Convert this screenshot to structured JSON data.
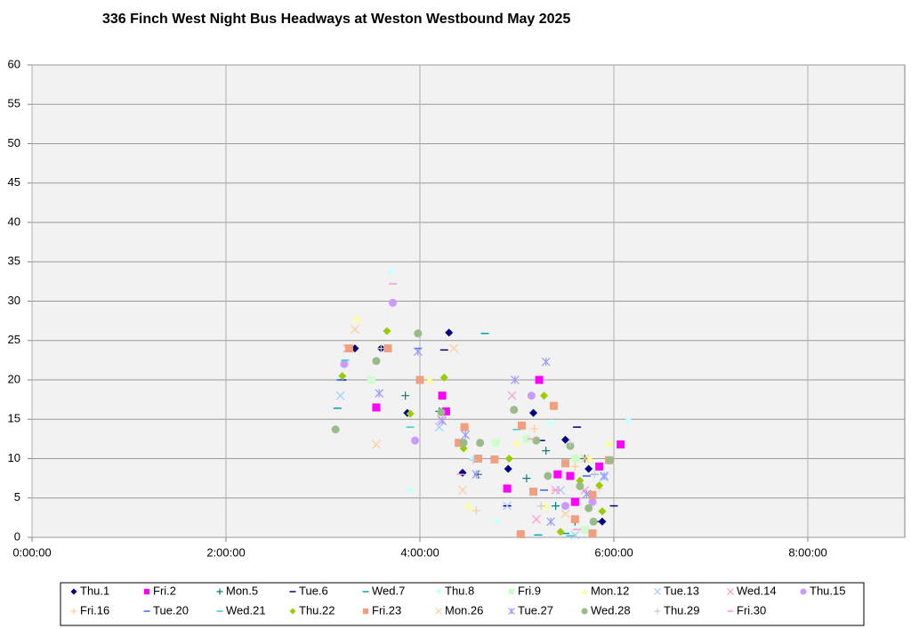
{
  "chart_data": {
    "type": "scatter",
    "title": "336 Finch West Night Bus Headways at Weston Westbound May 2025",
    "xlim": [
      0,
      9
    ],
    "ylim": [
      0,
      60
    ],
    "xticks": [
      {
        "value": 0,
        "label": "0:00:00"
      },
      {
        "value": 2,
        "label": "2:00:00"
      },
      {
        "value": 4,
        "label": "4:00:00"
      },
      {
        "value": 6,
        "label": "6:00:00"
      },
      {
        "value": 8,
        "label": "8:00:00"
      }
    ],
    "yticks": [
      0,
      5,
      10,
      15,
      20,
      25,
      30,
      35,
      40,
      45,
      50,
      55,
      60
    ],
    "grid": true,
    "legend": "bottom",
    "series": [
      {
        "name": "Thu.1",
        "color": "#000080",
        "marker": "diamond",
        "x": [
          3.33,
          3.6,
          3.87,
          4.3,
          4.44,
          4.91,
          5.17,
          5.5,
          5.74,
          5.88
        ],
        "values": [
          24,
          24,
          15.8,
          26,
          8.2,
          8.7,
          15.8,
          12.4,
          8.7,
          2
        ]
      },
      {
        "name": "Fri.2",
        "color": "#ff00ff",
        "marker": "square",
        "x": [
          3.55,
          4.23,
          4.27,
          4.6,
          4.9,
          5.23,
          5.42,
          5.55,
          5.85,
          6.07,
          5.6
        ],
        "values": [
          16.5,
          18,
          16,
          10,
          6.2,
          20,
          8,
          7.8,
          9,
          11.8,
          4.5
        ]
      },
      {
        "name": "Mon.5",
        "color": "#008080",
        "marker": "plus",
        "x": [
          3.85,
          4.2,
          4.6,
          5.1,
          5.3,
          5.4,
          5.7,
          5.6
        ],
        "values": [
          18,
          16,
          8,
          7.5,
          11,
          4,
          10,
          2
        ]
      },
      {
        "name": "Tue.6",
        "color": "#000080",
        "marker": "dash",
        "x": [
          3.2,
          4.25,
          4.46,
          4.9,
          5.25,
          5.62,
          5.8,
          6.0
        ],
        "values": [
          20,
          23.8,
          14,
          4,
          12.3,
          14,
          2,
          4
        ]
      },
      {
        "name": "Wed.7",
        "color": "#00a0c0",
        "marker": "dash",
        "x": [
          3.15,
          4.67,
          5.22,
          5.5,
          5.8
        ],
        "values": [
          16.4,
          25.9,
          0.3,
          0.5,
          8
        ]
      },
      {
        "name": "Thu.8",
        "color": "#ccffff",
        "marker": "diamond",
        "x": [
          3.9,
          4.8,
          5.35,
          6.15,
          3.7,
          4.55
        ],
        "values": [
          6,
          2,
          14.5,
          14.8,
          33.8,
          10
        ]
      },
      {
        "name": "Fri.9",
        "color": "#ccffcc",
        "marker": "square",
        "x": [
          3.5,
          4.78,
          5.1,
          5.6,
          5.7
        ],
        "values": [
          20,
          12,
          12.5,
          10,
          1
        ]
      },
      {
        "name": "Mon.12",
        "color": "#ffff99",
        "marker": "triangle",
        "x": [
          3.35,
          4.1,
          4.5,
          5.0,
          5.3,
          5.75,
          5.95
        ],
        "values": [
          27.8,
          20,
          4,
          12,
          4,
          10,
          12
        ]
      },
      {
        "name": "Tue.13",
        "color": "#99ccff",
        "marker": "x",
        "x": [
          3.18,
          4.2,
          4.9,
          5.45,
          5.9,
          5.6
        ],
        "values": [
          18,
          14,
          4,
          6,
          7.6,
          0.3
        ]
      },
      {
        "name": "Wed.14",
        "color": "#ff99cc",
        "marker": "x",
        "x": [
          3.25,
          4.22,
          4.95,
          5.2,
          5.4,
          5.7
        ],
        "values": [
          24,
          15,
          18,
          2.3,
          6,
          6
        ]
      },
      {
        "name": "Thu.15",
        "color": "#cc99ff",
        "marker": "circle",
        "x": [
          3.72,
          3.95,
          3.22,
          5.15,
          5.5,
          5.78
        ],
        "values": [
          29.8,
          12.3,
          22,
          18,
          4,
          4.5
        ]
      },
      {
        "name": "Fri.16",
        "color": "#ffcc99",
        "marker": "plus",
        "x": [
          4.58,
          5.18,
          5.6,
          5.85
        ],
        "values": [
          3.4,
          13.8,
          9,
          6.2
        ]
      },
      {
        "name": "Tue.20",
        "color": "#3366ff",
        "marker": "dash",
        "x": [
          3.18,
          3.98,
          5.28,
          5.72
        ],
        "values": [
          20,
          24,
          6,
          7.8
        ]
      },
      {
        "name": "Wed.21",
        "color": "#33cccc",
        "marker": "dash",
        "x": [
          3.23,
          3.9,
          5.0,
          5.55
        ],
        "values": [
          22.5,
          14,
          13.7,
          0.2
        ]
      },
      {
        "name": "Thu.22",
        "color": "#99cc00",
        "marker": "diamond",
        "x": [
          3.2,
          3.66,
          3.9,
          4.25,
          4.45,
          4.92,
          5.28,
          5.45,
          5.65,
          5.88,
          5.85
        ],
        "values": [
          20.5,
          26.2,
          15.7,
          20.3,
          11.3,
          10,
          18,
          0.7,
          7.2,
          3.3,
          6.6
        ]
      },
      {
        "name": "Fri.23",
        "color": "#f0a080",
        "marker": "square",
        "x": [
          3.27,
          3.67,
          4.0,
          4.4,
          4.46,
          4.6,
          4.77,
          5.04,
          5.05,
          5.17,
          5.38,
          5.5,
          5.6,
          5.78,
          5.78,
          5.95
        ],
        "values": [
          24,
          24,
          20,
          12,
          14,
          10,
          9.9,
          0.4,
          14.2,
          5.8,
          16.7,
          9.4,
          2.3,
          5.4,
          0.5,
          9.8
        ]
      },
      {
        "name": "Mon.26",
        "color": "#ffcc99",
        "marker": "x",
        "x": [
          3.33,
          3.55,
          4.35,
          4.44,
          5.5,
          5.7
        ],
        "values": [
          26.4,
          11.8,
          24,
          6,
          3,
          10
        ]
      },
      {
        "name": "Tue.27",
        "color": "#9999ff",
        "marker": "asterisk",
        "x": [
          3.58,
          3.98,
          4.23,
          4.47,
          4.58,
          4.98,
          5.3,
          5.35,
          5.72,
          5.9
        ],
        "values": [
          18.3,
          23.6,
          14.8,
          13,
          8,
          20,
          22.3,
          2,
          5.5,
          7.8
        ]
      },
      {
        "name": "Wed.28",
        "color": "#99bb88",
        "marker": "circle",
        "x": [
          3.13,
          3.55,
          3.98,
          4.22,
          4.45,
          4.62,
          4.97,
          5.2,
          5.32,
          5.55,
          5.65,
          5.74,
          5.79,
          5.96
        ],
        "values": [
          13.7,
          22.4,
          25.9,
          15.9,
          12,
          12,
          16.2,
          12.3,
          7.8,
          11.6,
          6.5,
          3.7,
          2,
          9.8
        ]
      },
      {
        "name": "Thu.29",
        "color": "#cccccc",
        "marker": "plus",
        "x": [
          3.6,
          4.55,
          5.25,
          5.55,
          5.8
        ],
        "values": [
          24,
          9.8,
          4,
          12,
          8
        ]
      },
      {
        "name": "Fri.30",
        "color": "#ff99cc",
        "marker": "dash",
        "x": [
          3.72,
          4.42,
          5.15,
          5.4,
          5.62
        ],
        "values": [
          32.2,
          8,
          12.5,
          6,
          1
        ]
      }
    ]
  }
}
